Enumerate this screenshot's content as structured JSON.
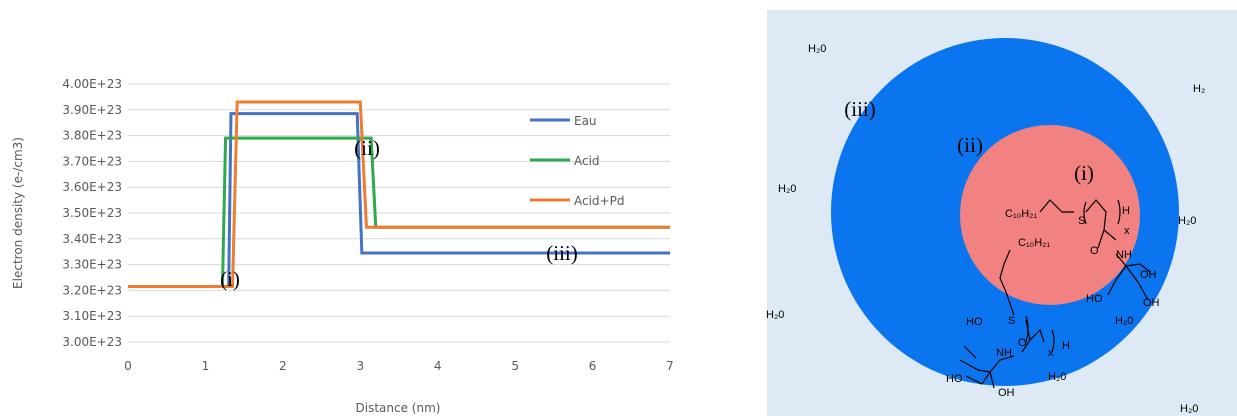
{
  "chart_data": {
    "type": "line",
    "xlabel": "Distance (nm)",
    "ylabel": "Electron density (e-/cm3)",
    "xlim": [
      0,
      7
    ],
    "xticks": [
      0,
      1,
      2,
      3,
      4,
      5,
      6,
      7
    ],
    "ylim": [
      3e+23,
      4e+23
    ],
    "yticks": [
      {
        "value": 3e+23,
        "label": "3.00E+23"
      },
      {
        "value": 3.1e+23,
        "label": "3.10E+23"
      },
      {
        "value": 3.2e+23,
        "label": "3.20E+23"
      },
      {
        "value": 3.3e+23,
        "label": "3.30E+23"
      },
      {
        "value": 3.4e+23,
        "label": "3.40E+23"
      },
      {
        "value": 3.5e+23,
        "label": "3.50E+23"
      },
      {
        "value": 3.6e+23,
        "label": "3.60E+23"
      },
      {
        "value": 3.7e+23,
        "label": "3.70E+23"
      },
      {
        "value": 3.8e+23,
        "label": "3.80E+23"
      },
      {
        "value": 3.9e+23,
        "label": "3.90E+23"
      },
      {
        "value": 4e+23,
        "label": "4.00E+23"
      }
    ],
    "grid": true,
    "legend": "right",
    "series": [
      {
        "name": "Eau",
        "color": "#4472c4",
        "x": [
          0,
          1.3,
          1.33,
          2.96,
          3.02,
          7
        ],
        "values": [
          3.215e+23,
          3.215e+23,
          3.885e+23,
          3.885e+23,
          3.345e+23,
          3.345e+23
        ]
      },
      {
        "name": "Acid",
        "color": "#2fa84f",
        "x": [
          0,
          1.22,
          1.26,
          3.14,
          3.2,
          7
        ],
        "values": [
          3.215e+23,
          3.215e+23,
          3.79e+23,
          3.79e+23,
          3.445e+23,
          3.445e+23
        ]
      },
      {
        "name": "Acid+Pd",
        "color": "#ed7d31",
        "x": [
          0,
          1.35,
          1.41,
          3.0,
          3.08,
          7
        ],
        "values": [
          3.215e+23,
          3.215e+23,
          3.93e+23,
          3.93e+23,
          3.445e+23,
          3.445e+23
        ]
      }
    ],
    "annotations": [
      "(i)",
      "(ii)",
      "(iii)"
    ]
  },
  "diagram": {
    "labels": [
      "H₂0",
      "H₂",
      "H₂0",
      "H₂0",
      "H₂0",
      "H₂0",
      "H₂0",
      "H₂0",
      "(iii)",
      "(ii)",
      "(i)",
      "C₁₀H₂₁",
      "S",
      "H",
      "x",
      "O",
      "NH",
      "OH",
      "HO",
      "OH",
      "C₁₀H₂₁",
      "S",
      "O",
      "HO",
      "NH",
      "x",
      "H",
      "HO",
      "OH"
    ]
  }
}
